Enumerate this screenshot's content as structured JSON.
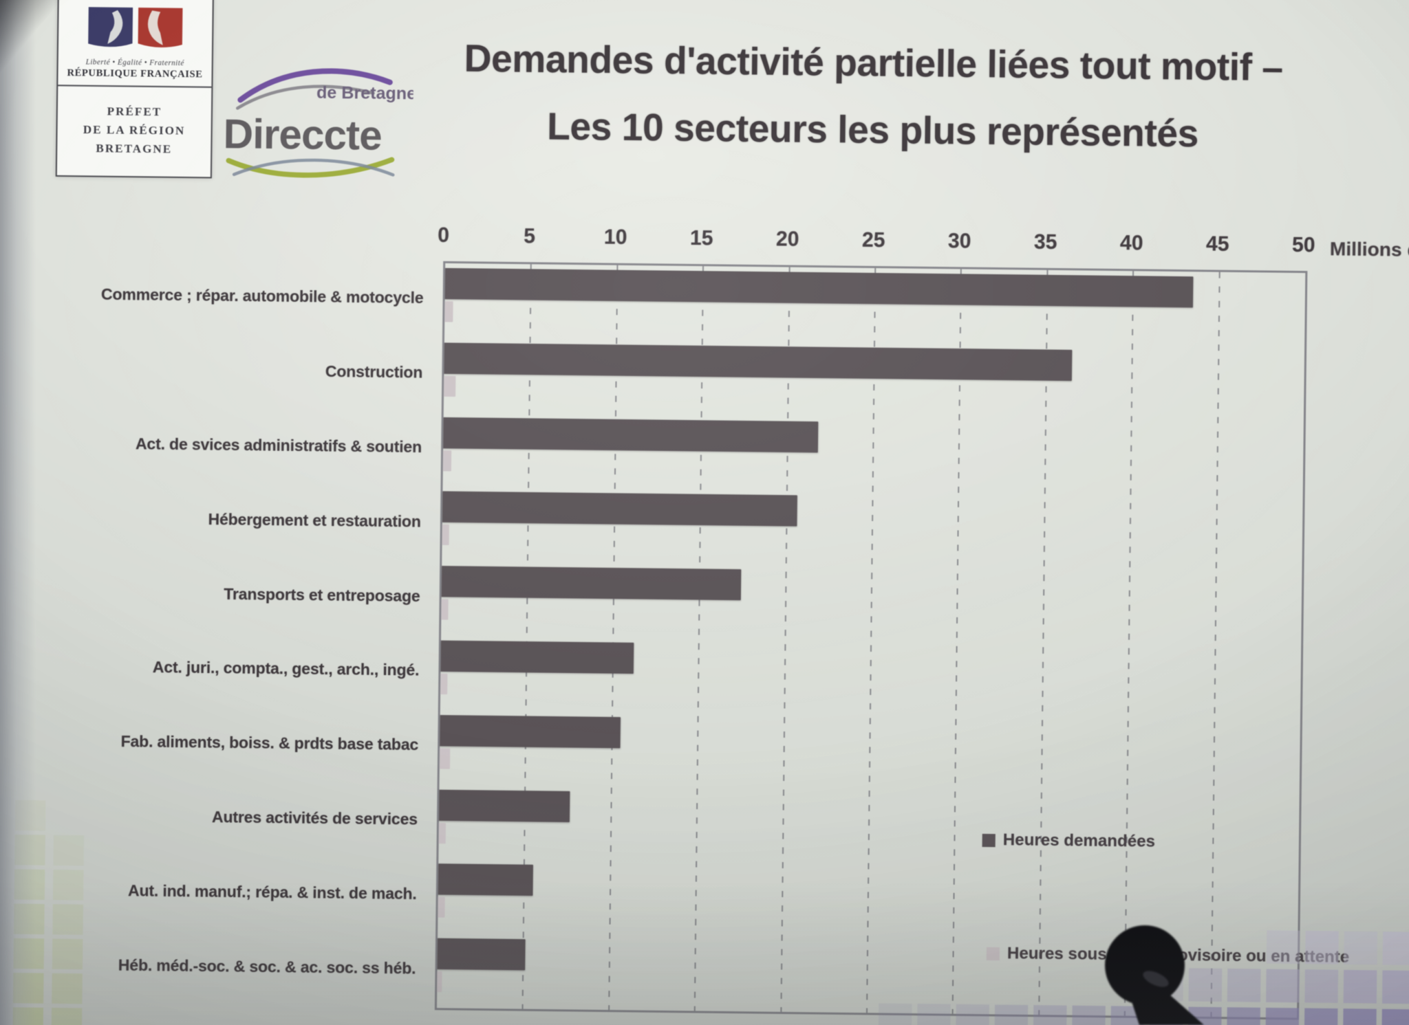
{
  "header": {
    "insignia": {
      "motto": "Liberté • Égalité • Fraternité",
      "republic": "RÉPUBLIQUE FRANÇAISE",
      "prefecture": [
        "PRÉFET",
        "DE LA RÉGION",
        "BRETAGNE"
      ]
    },
    "direccte": {
      "region": "de Bretagne",
      "name": "Direccte"
    },
    "title_line1": "Demandes d'activité partielle liées tout motif –",
    "title_line2": "Les 10 secteurs les plus représentés"
  },
  "chart_data": {
    "type": "bar",
    "orientation": "horizontal",
    "title": "Demandes d'activité partielle liées tout motif – Les 10 secteurs les plus représentés",
    "x_axis_unit_label": "Millions d'heu",
    "x_ticks": [
      0,
      5,
      10,
      15,
      20,
      25,
      30,
      35,
      40,
      45,
      50
    ],
    "xlim": [
      0,
      50
    ],
    "grid": "vertical-dashed",
    "legend_position": "inside-right",
    "categories": [
      "Commerce ; répar. automobile & motocycle",
      "Construction",
      "Act. de svices administratifs & soutien",
      "Hébergement et restauration",
      "Transports et entreposage",
      "Act. juri., compta., gest., arch., ingé.",
      "Fab. aliments, boiss. & prdts base tabac",
      "Autres activités de services",
      "Aut. ind. manuf.; répa. & inst. de mach.",
      "Héb. méd.-soc. & soc. & ac. soc. ss héb."
    ],
    "series": [
      {
        "name": "Heures demandées",
        "color": "#5a5357",
        "values": [
          43.5,
          36.5,
          21.8,
          20.6,
          17.4,
          11.2,
          10.5,
          7.6,
          5.5,
          5.1
        ]
      },
      {
        "name": "Heures sous statut provisoire ou en attente",
        "color": "#ccc4c7",
        "values": [
          0.5,
          0.7,
          0.5,
          0.4,
          0.4,
          0.4,
          0.6,
          0.4,
          0.4,
          0.3
        ]
      }
    ]
  }
}
